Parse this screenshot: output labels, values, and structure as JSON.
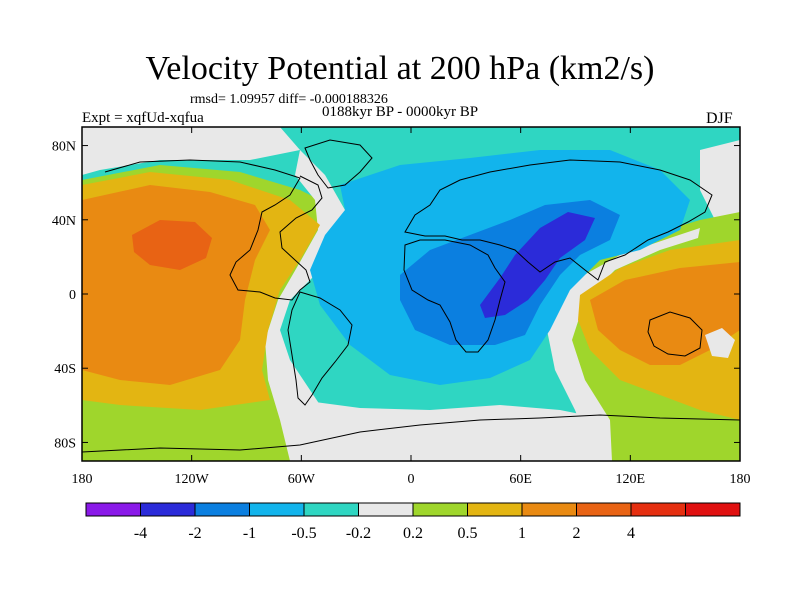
{
  "title": "Velocity Potential at 200 hPa (km2/s)",
  "stats_line": "rmsd= 1.09957 diff= -0.000188326",
  "experiment": "Expt = xqfUd-xqfua",
  "period": "0188kyr BP - 0000kyr BP",
  "season": "DJF",
  "map": {
    "lon_range": [
      -180,
      180
    ],
    "lat_range": [
      -90,
      90
    ],
    "lat_ticks": [
      {
        "value": 80,
        "label": "80N"
      },
      {
        "value": 40,
        "label": "40N"
      },
      {
        "value": 0,
        "label": "0"
      },
      {
        "value": -40,
        "label": "40S"
      },
      {
        "value": -80,
        "label": "80S"
      }
    ],
    "lon_ticks": [
      {
        "value": -180,
        "label": "180"
      },
      {
        "value": -120,
        "label": "120W"
      },
      {
        "value": -60,
        "label": "60W"
      },
      {
        "value": 0,
        "label": "0"
      },
      {
        "value": 60,
        "label": "60E"
      },
      {
        "value": 120,
        "label": "120E"
      },
      {
        "value": 180,
        "label": "180"
      }
    ]
  },
  "colorbar": {
    "colors": [
      "#8a19e8",
      "#2b2bd9",
      "#0b7fe0",
      "#12b4ec",
      "#2fd6c2",
      "#e8e8e8",
      "#9fd62c",
      "#e3b512",
      "#e98a12",
      "#e86314",
      "#e52f10",
      "#e01010"
    ],
    "labels": [
      "-4",
      "-2",
      "-1",
      "-0.5",
      "-0.2",
      "0.2",
      "0.5",
      "1",
      "2",
      "4"
    ]
  }
}
